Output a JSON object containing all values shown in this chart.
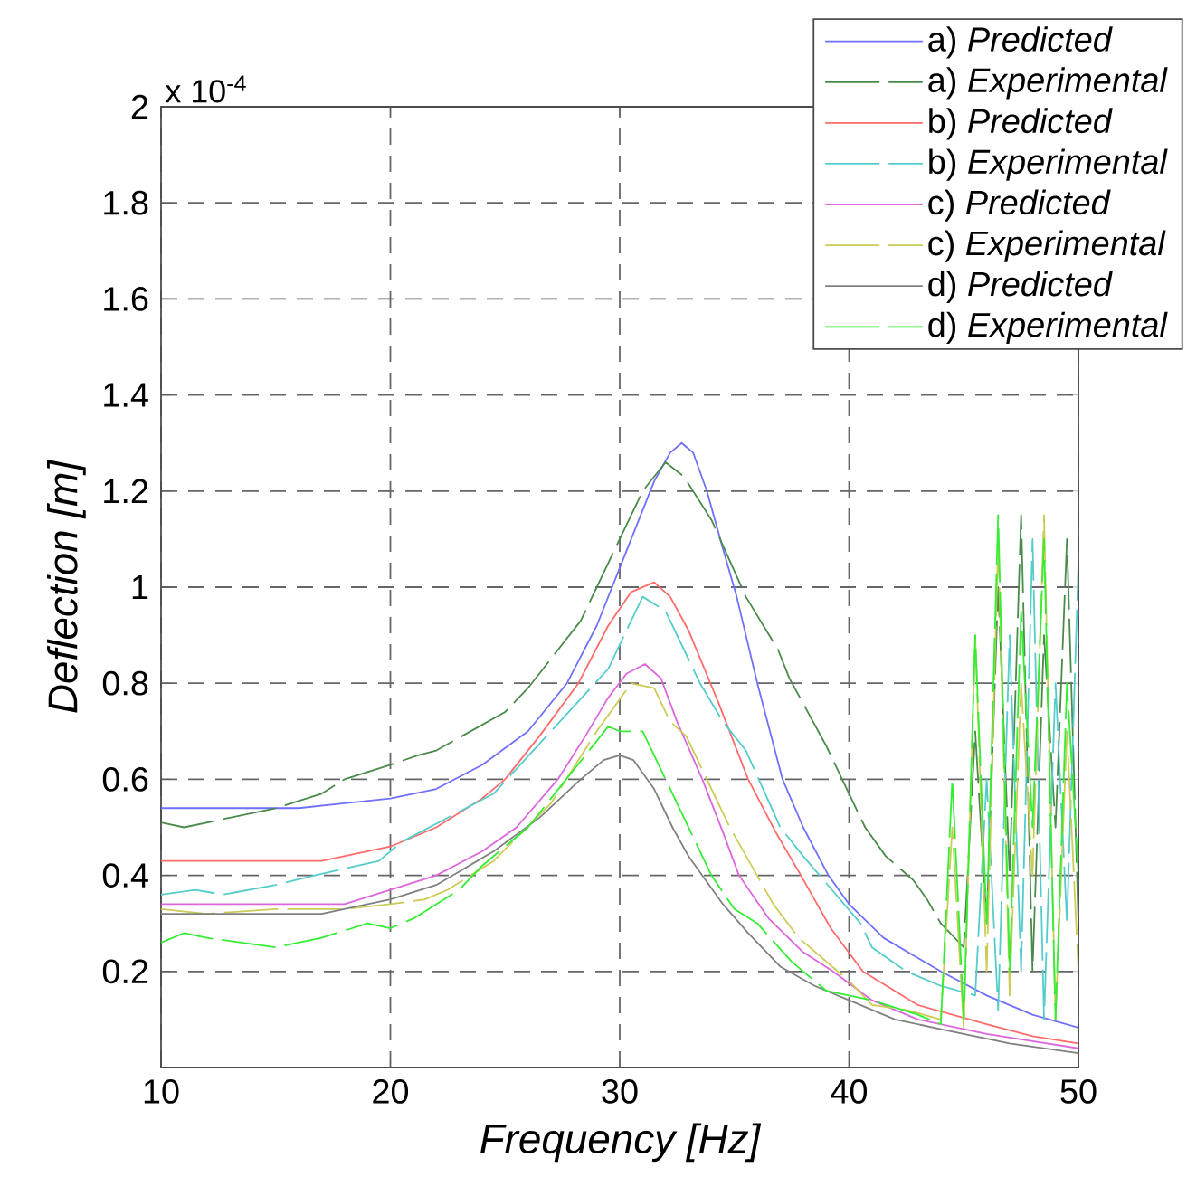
{
  "chart_data": {
    "type": "line",
    "xlabel": "Frequency [Hz]",
    "ylabel": "Deflection [m]",
    "annotations": [
      "x 10$^{-4}$"
    ],
    "xlim": [
      10,
      50
    ],
    "xticks": [
      10,
      20,
      30,
      40,
      50
    ],
    "ylim": [
      0,
      2
    ],
    "yticks": [
      0.2,
      0.4,
      0.6,
      0.8,
      1,
      1.2,
      1.4,
      1.6,
      1.8,
      2
    ],
    "grid": true,
    "legend": "top right",
    "series": [
      {
        "name": "a) *Predicted*",
        "color": "#7070ff",
        "line_style": "solid",
        "x": [
          10,
          13,
          16,
          18,
          20,
          22,
          24,
          26,
          27.7,
          29,
          30.5,
          31.5,
          32.2,
          32.7,
          33.2,
          33.8,
          34.5,
          35.1,
          36,
          37.1,
          38,
          39.1,
          40,
          41.5,
          44,
          46,
          48,
          50
        ],
        "values": [
          0.54,
          0.54,
          0.54,
          0.55,
          0.56,
          0.58,
          0.63,
          0.7,
          0.8,
          0.92,
          1.1,
          1.22,
          1.28,
          1.3,
          1.28,
          1.2,
          1.08,
          0.98,
          0.8,
          0.6,
          0.5,
          0.4,
          0.34,
          0.27,
          0.2,
          0.15,
          0.11,
          0.083
        ]
      },
      {
        "name": "a) *Experimental*",
        "color": "#4a8a4a",
        "line_style": "dashed",
        "x": [
          10,
          11,
          13,
          15,
          17,
          18,
          20,
          21.2,
          22,
          25,
          26,
          28.3,
          29.5,
          31,
          32,
          32.8,
          34,
          35.5,
          36.9,
          37.4,
          39,
          40.7,
          41.6,
          42.8,
          43.4,
          44,
          45,
          45.5,
          46,
          46.5,
          47,
          47.5,
          48,
          48.5,
          49,
          49.5,
          50
        ],
        "values": [
          0.51,
          0.5,
          0.52,
          0.54,
          0.57,
          0.6,
          0.63,
          0.65,
          0.66,
          0.74,
          0.79,
          0.93,
          1.05,
          1.2,
          1.26,
          1.23,
          1.14,
          0.98,
          0.87,
          0.81,
          0.67,
          0.5,
          0.44,
          0.39,
          0.35,
          0.3,
          0.25,
          0.7,
          0.3,
          1.0,
          0.4,
          1.15,
          0.2,
          0.9,
          0.5,
          1.1,
          0.3
        ]
      },
      {
        "name": "b) *Predicted*",
        "color": "#ff6b6b",
        "line_style": "solid",
        "x": [
          10,
          14,
          17,
          20,
          22,
          24,
          25,
          26.5,
          28.2,
          29.5,
          30.5,
          31.5,
          32.2,
          33,
          34.3,
          35.6,
          36.8,
          37.9,
          39.2,
          40.6,
          43,
          46,
          48,
          50
        ],
        "values": [
          0.43,
          0.43,
          0.43,
          0.46,
          0.5,
          0.56,
          0.6,
          0.69,
          0.8,
          0.92,
          0.99,
          1.01,
          0.98,
          0.91,
          0.76,
          0.6,
          0.49,
          0.4,
          0.29,
          0.2,
          0.13,
          0.09,
          0.065,
          0.05
        ]
      },
      {
        "name": "b) *Experimental*",
        "color": "#55cccc",
        "line_style": "dashed",
        "x": [
          10,
          11.5,
          12.7,
          15,
          16.7,
          19.5,
          20.5,
          23.3,
          24.5,
          27,
          29.5,
          31,
          32,
          33.5,
          34.5,
          35.5,
          37,
          38,
          40.5,
          41,
          42.5,
          44,
          45.5,
          46,
          46.5,
          47,
          47.5,
          48,
          48.5,
          49,
          49.5,
          50
        ],
        "values": [
          0.36,
          0.37,
          0.36,
          0.38,
          0.4,
          0.43,
          0.47,
          0.54,
          0.57,
          0.7,
          0.83,
          0.98,
          0.95,
          0.8,
          0.72,
          0.66,
          0.5,
          0.44,
          0.3,
          0.25,
          0.2,
          0.17,
          0.15,
          0.6,
          0.12,
          0.9,
          0.2,
          1.1,
          0.1,
          0.8,
          0.3,
          1.05
        ]
      },
      {
        "name": "c) *Predicted*",
        "color": "#dd66dd",
        "line_style": "solid",
        "x": [
          10,
          14,
          18,
          20,
          22,
          24,
          25.5,
          27.3,
          28.5,
          29.5,
          30.3,
          31.1,
          31.8,
          32.5,
          33.6,
          34.5,
          35.2,
          36.5,
          38,
          39.3,
          41,
          43,
          46,
          48,
          50
        ],
        "values": [
          0.34,
          0.34,
          0.34,
          0.37,
          0.4,
          0.45,
          0.5,
          0.6,
          0.69,
          0.77,
          0.82,
          0.84,
          0.81,
          0.72,
          0.6,
          0.49,
          0.4,
          0.31,
          0.24,
          0.2,
          0.14,
          0.1,
          0.07,
          0.055,
          0.04
        ]
      },
      {
        "name": "c) *Experimental*",
        "color": "#cccc55",
        "line_style": "dashed",
        "x": [
          10,
          12,
          15,
          18,
          20,
          21.5,
          22.5,
          24.5,
          27,
          29,
          30.5,
          31.5,
          32.2,
          32.9,
          34.8,
          36.7,
          37.8,
          40,
          41,
          42.5,
          44,
          44.5,
          45,
          45.5,
          46,
          46.5,
          47,
          47.5,
          48,
          48.5,
          49,
          49.5,
          50
        ],
        "values": [
          0.33,
          0.32,
          0.33,
          0.33,
          0.34,
          0.35,
          0.37,
          0.43,
          0.55,
          0.7,
          0.8,
          0.79,
          0.72,
          0.69,
          0.5,
          0.34,
          0.27,
          0.18,
          0.13,
          0.12,
          0.1,
          0.5,
          0.08,
          0.9,
          0.2,
          1.1,
          0.15,
          0.8,
          0.4,
          1.15,
          0.1,
          0.7,
          0.2
        ]
      },
      {
        "name": "d) *Predicted*",
        "color": "#808080",
        "line_style": "solid",
        "x": [
          10,
          14,
          17,
          20,
          22,
          24.5,
          26.5,
          28.3,
          29.3,
          30,
          30.6,
          31.5,
          32.3,
          33,
          34.5,
          35.6,
          37,
          38.5,
          40,
          42,
          44,
          47,
          50
        ],
        "values": [
          0.32,
          0.32,
          0.32,
          0.35,
          0.38,
          0.45,
          0.52,
          0.6,
          0.64,
          0.65,
          0.64,
          0.58,
          0.5,
          0.44,
          0.34,
          0.28,
          0.21,
          0.17,
          0.14,
          0.1,
          0.08,
          0.05,
          0.03
        ]
      },
      {
        "name": "d) *Experimental*",
        "color": "#33ee33",
        "line_style": "dashed",
        "x": [
          10,
          11,
          12,
          13.5,
          15,
          17,
          19,
          20,
          21,
          23,
          24,
          26,
          28,
          29.5,
          30,
          31,
          32,
          33,
          34,
          35,
          36,
          37.5,
          39,
          41,
          43,
          44,
          44.5,
          45,
          45.5,
          46,
          46.5,
          47,
          47.5,
          48,
          48.5,
          49,
          49.5,
          50
        ],
        "values": [
          0.26,
          0.28,
          0.27,
          0.26,
          0.25,
          0.27,
          0.3,
          0.29,
          0.31,
          0.37,
          0.42,
          0.5,
          0.62,
          0.71,
          0.7,
          0.7,
          0.6,
          0.5,
          0.4,
          0.33,
          0.3,
          0.22,
          0.16,
          0.14,
          0.11,
          0.09,
          0.6,
          0.1,
          0.9,
          0.3,
          1.15,
          0.2,
          0.95,
          0.5,
          1.1,
          0.1,
          0.8,
          0.4
        ]
      }
    ]
  }
}
